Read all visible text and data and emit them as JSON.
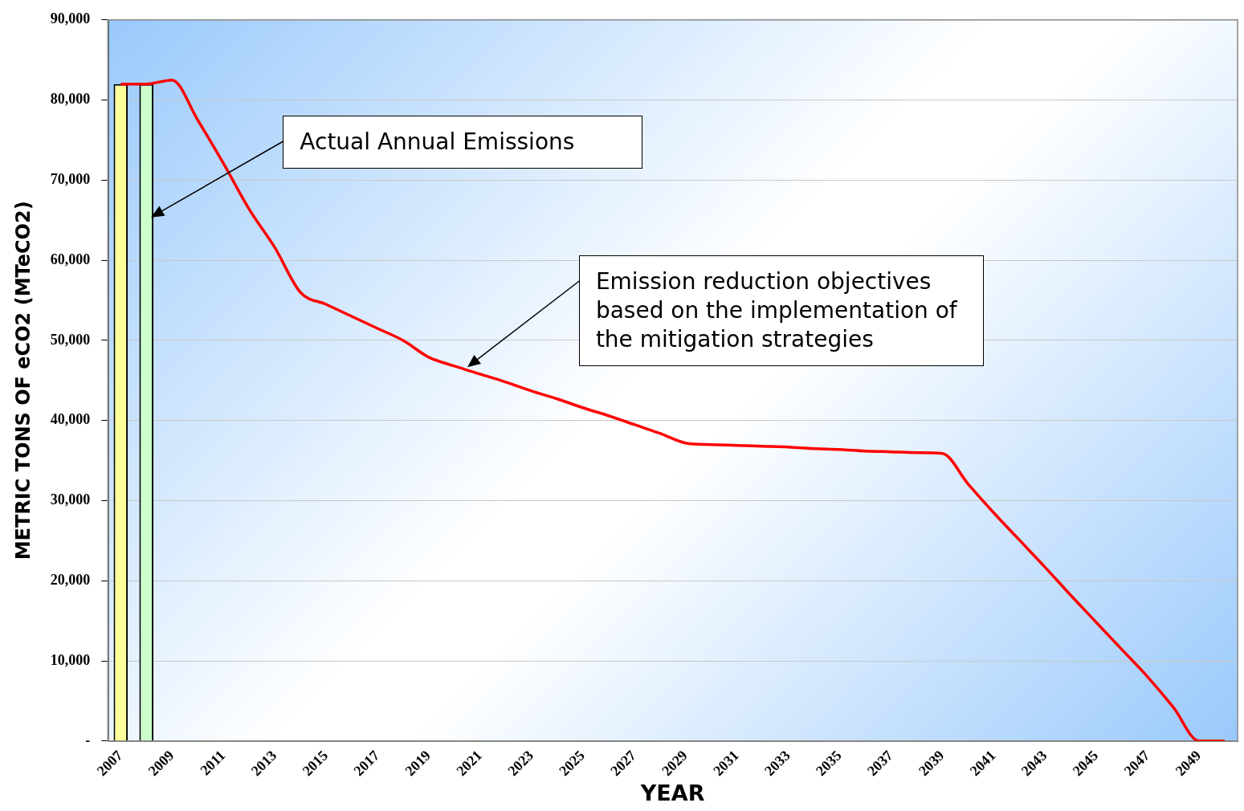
{
  "chart_data": {
    "type": "bar",
    "xlabel": "YEAR",
    "ylabel": "METRIC TONS OF eCO2 (MTeCO2)",
    "categories": [
      "2007",
      null,
      "2009",
      null,
      "2011",
      null,
      "2013",
      null,
      "2015",
      null,
      "2017",
      null,
      "2019",
      null,
      "2021",
      null,
      "2023",
      null,
      "2025",
      null,
      "2027",
      null,
      "2029",
      null,
      "2031",
      null,
      "2033",
      null,
      "2035",
      null,
      "2037",
      null,
      "2039",
      null,
      "2041",
      null,
      "2043",
      null,
      "2045",
      null,
      "2047",
      null,
      "2049",
      null
    ],
    "series": [
      {
        "colors": [
          "#ffff99",
          "#ccffcc",
          null,
          null,
          null,
          null,
          null,
          null,
          null,
          null,
          null,
          null,
          null,
          null,
          null,
          null,
          null,
          null,
          null,
          null,
          null,
          null,
          null,
          null,
          null,
          null,
          null,
          null,
          null,
          null,
          null,
          null,
          null,
          null,
          null,
          null,
          null,
          null,
          null,
          null,
          null,
          null,
          null,
          null
        ],
        "values": [
          82000,
          82000,
          null,
          null,
          null,
          null,
          null,
          null,
          null,
          null,
          null,
          null,
          null,
          null,
          null,
          null,
          null,
          null,
          null,
          null,
          null,
          null,
          null,
          null,
          null,
          null,
          null,
          null,
          null,
          null,
          null,
          null,
          null,
          null,
          null,
          null,
          null,
          null,
          null,
          null,
          null,
          null,
          null,
          null
        ]
      },
      {
        "type": "line",
        "color": "#ff0000",
        "values": [
          82000,
          82000,
          82500,
          77500,
          72100,
          66400,
          61600,
          56000,
          54500,
          53000,
          51500,
          50000,
          47900,
          46800,
          45800,
          44800,
          43700,
          42700,
          41600,
          40600,
          39500,
          38400,
          37200,
          37000,
          36900,
          36800,
          36700,
          36500,
          36400,
          36200,
          36100,
          36000,
          35900,
          32100,
          28500,
          25100,
          21700,
          18200,
          14800,
          11400,
          8000,
          4200,
          0,
          0
        ]
      }
    ],
    "ylim": [
      0,
      90000
    ],
    "yticks": [
      {
        "value": 0,
        "label": "-"
      },
      {
        "value": 10000,
        "label": "10,000"
      },
      {
        "value": 20000,
        "label": "20,000"
      },
      {
        "value": 30000,
        "label": "30,000"
      },
      {
        "value": 40000,
        "label": "40,000"
      },
      {
        "value": 50000,
        "label": "50,000"
      },
      {
        "value": 60000,
        "label": "60,000"
      },
      {
        "value": 70000,
        "label": "70,000"
      },
      {
        "value": 80000,
        "label": "80,000"
      },
      {
        "value": 90000,
        "label": "90,000"
      }
    ],
    "grid": "y",
    "legend": false,
    "marker": "none",
    "line_style": "solid",
    "annotations": [
      "Actual Annual Emissions",
      "Emission reduction objectives based on the implementation of the mitigation strategies"
    ]
  }
}
